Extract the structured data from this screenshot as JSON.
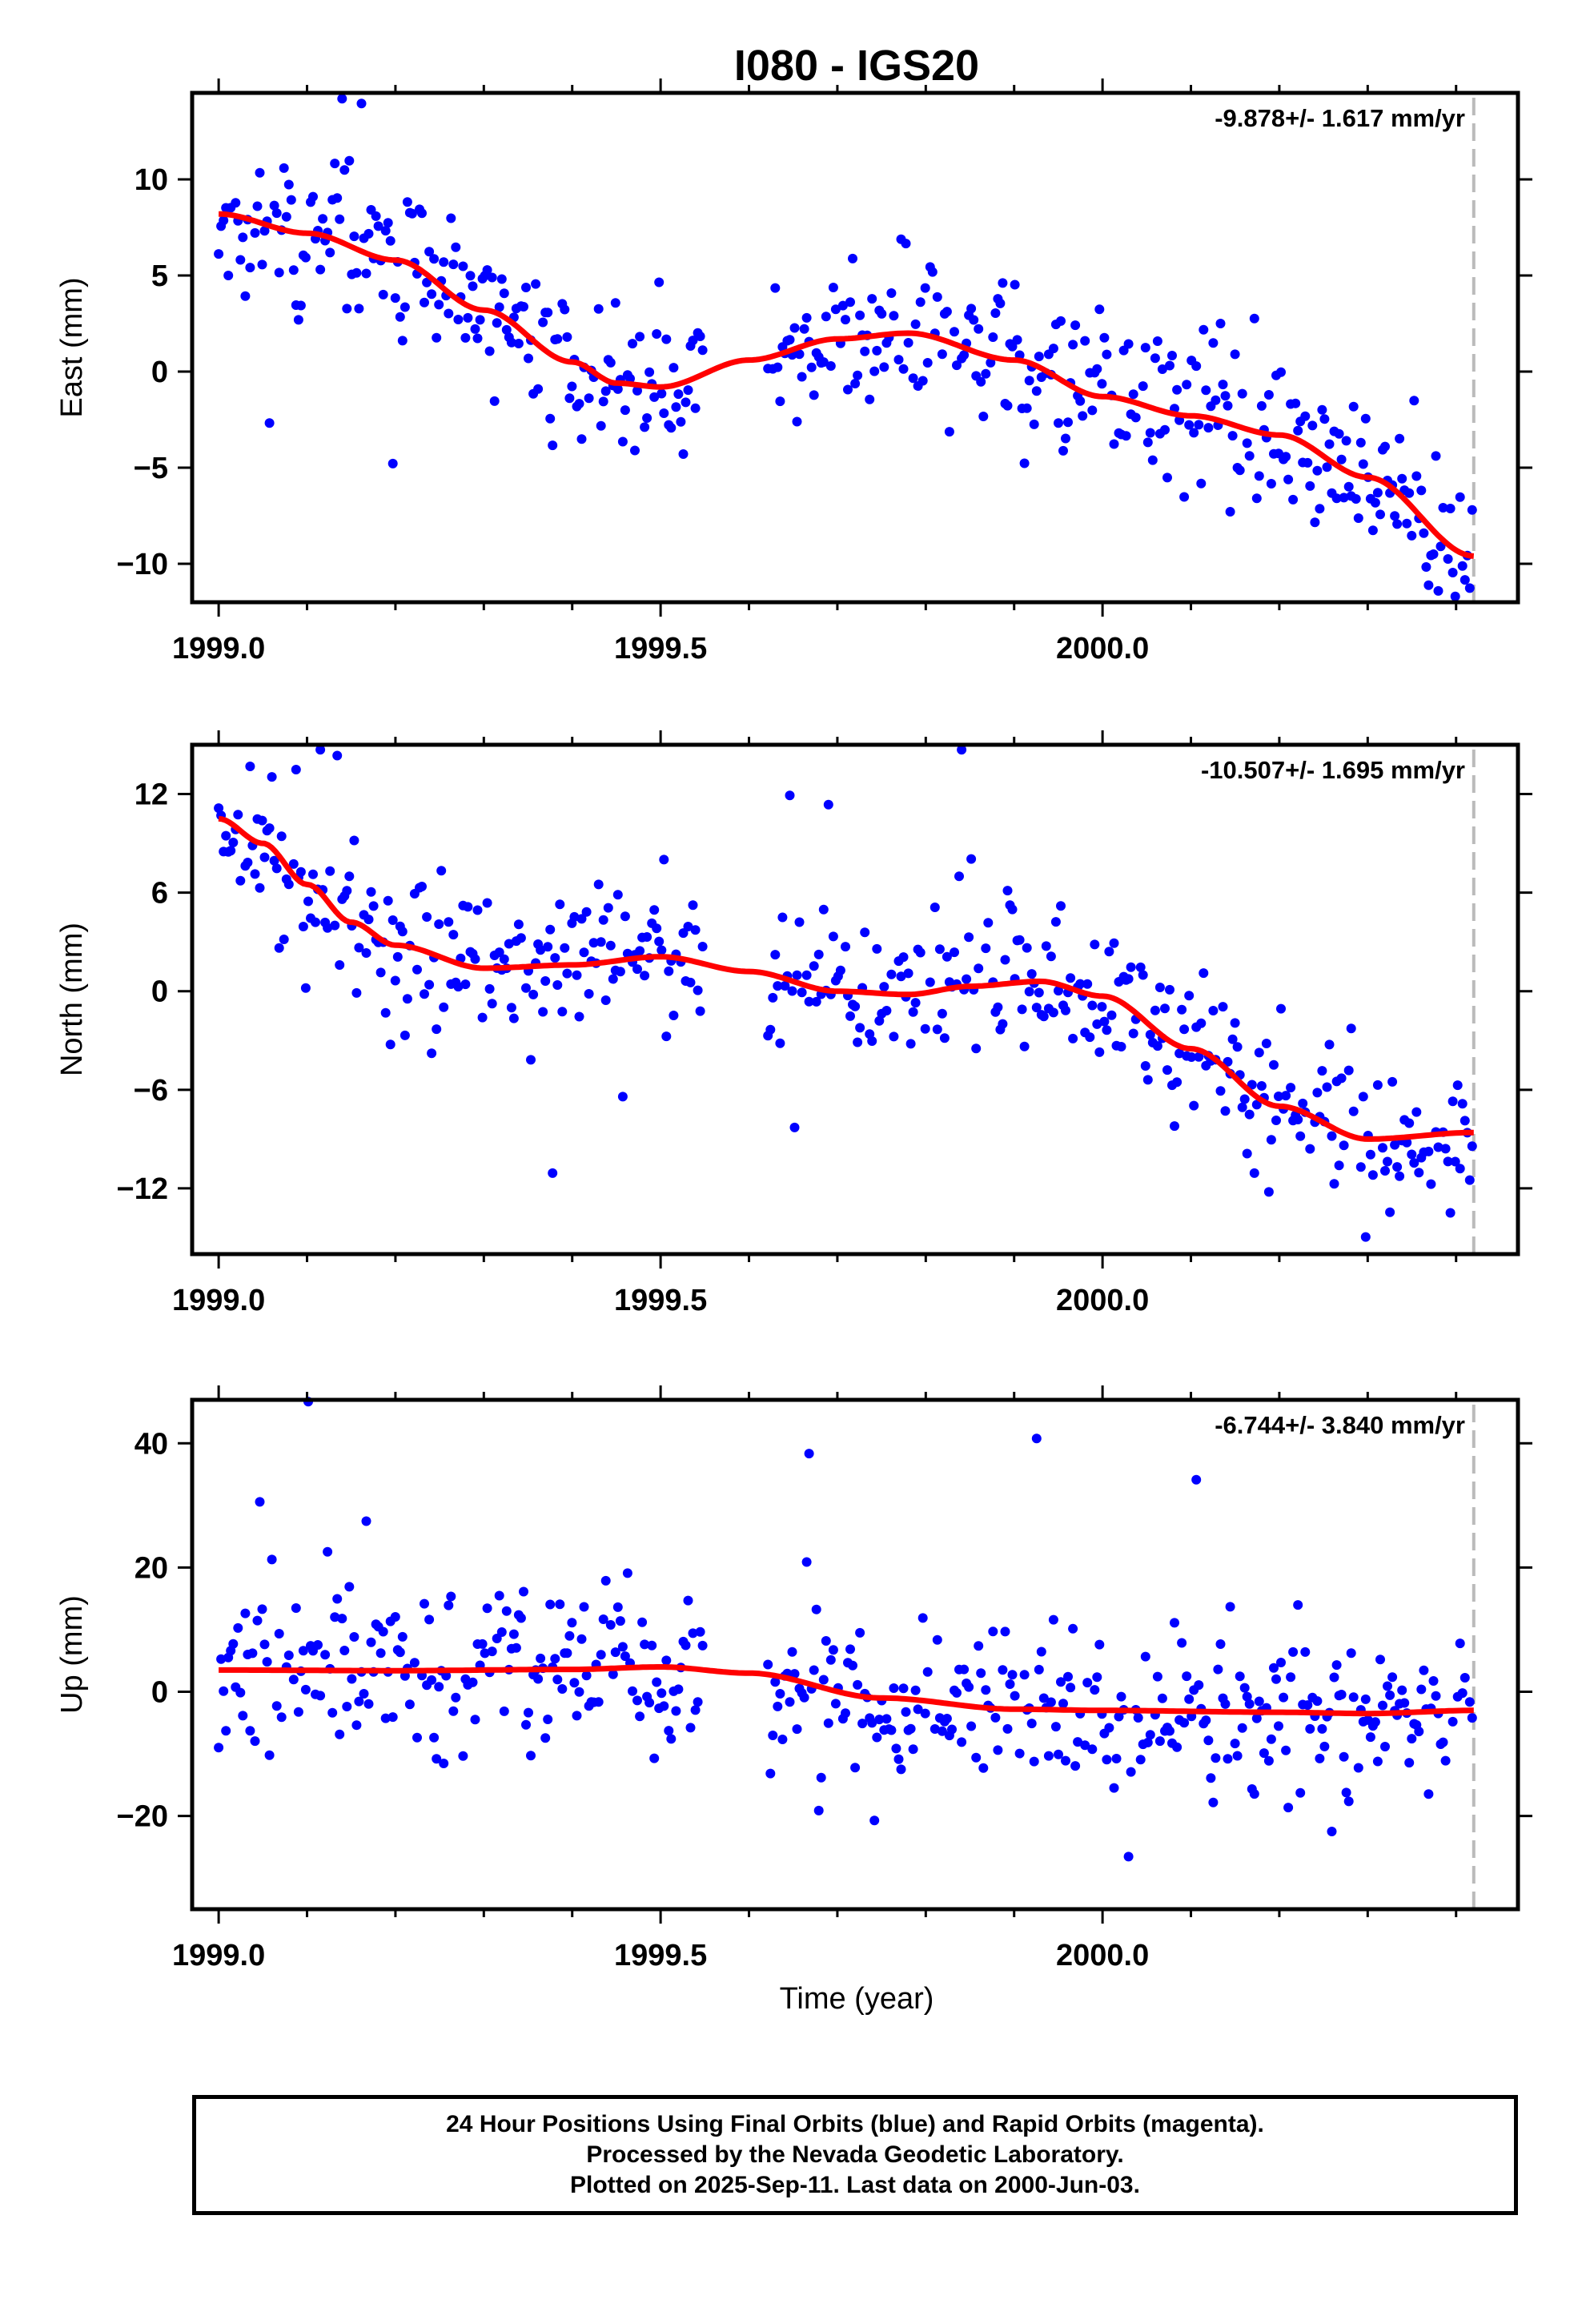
{
  "figure": {
    "title": "I080 - IGS20",
    "xlabel": "Time (year)",
    "x_ticks": [
      1999.0,
      1999.5,
      2000.0
    ],
    "x_tick_labels": [
      "1999.0",
      "1999.5",
      "2000.0"
    ],
    "x_range": [
      1998.97,
      2000.47
    ],
    "last_data_year": 2000.42,
    "footer": [
      "24 Hour Positions Using Final Orbits (blue) and Rapid Orbits (magenta).",
      "Processed by the Nevada Geodetic Laboratory.",
      "Plotted on 2025-Sep-11. Last data on 2000-Jun-03."
    ],
    "colors": {
      "final_orbits": "#0000ff",
      "fit": "#ff0000",
      "marker_line": "#bbbbbb",
      "axes": "#000000"
    }
  },
  "chart_data": [
    {
      "type": "scatter",
      "ylabel": "East (mm)",
      "rate_text": "-9.878+/- 1.617 mm/yr",
      "ylim": [
        -12,
        14.5
      ],
      "y_ticks": [
        -10,
        -5,
        0,
        5,
        10
      ],
      "y_tick_labels": [
        "−10",
        "−5",
        "0",
        "5",
        "10"
      ],
      "fit_knots": [
        [
          1999.0,
          8.2
        ],
        [
          1999.1,
          7.2
        ],
        [
          1999.2,
          5.8
        ],
        [
          1999.3,
          3.2
        ],
        [
          1999.4,
          0.5
        ],
        [
          1999.45,
          -0.6
        ],
        [
          1999.5,
          -0.8
        ],
        [
          1999.6,
          0.6
        ],
        [
          1999.7,
          1.7
        ],
        [
          1999.78,
          2.0
        ],
        [
          1999.9,
          0.6
        ],
        [
          2000.0,
          -1.3
        ],
        [
          2000.1,
          -2.3
        ],
        [
          2000.2,
          -3.3
        ],
        [
          2000.3,
          -5.5
        ],
        [
          2000.42,
          -9.6
        ]
      ],
      "fit_series": "Fit",
      "points_series": "Final Orbits",
      "noise": 2.1,
      "outlier_rate": 0.04,
      "outlier_scale": 3.0,
      "seed": 11
    },
    {
      "type": "scatter",
      "ylabel": "North (mm)",
      "rate_text": "-10.507+/- 1.695 mm/yr",
      "ylim": [
        -16,
        15
      ],
      "y_ticks": [
        -12,
        -6,
        0,
        6,
        12
      ],
      "y_tick_labels": [
        "−12",
        "−6",
        "0",
        "6",
        "12"
      ],
      "fit_knots": [
        [
          1999.0,
          10.5
        ],
        [
          1999.05,
          9.0
        ],
        [
          1999.1,
          6.5
        ],
        [
          1999.15,
          4.2
        ],
        [
          1999.2,
          2.8
        ],
        [
          1999.3,
          1.4
        ],
        [
          1999.4,
          1.6
        ],
        [
          1999.5,
          2.1
        ],
        [
          1999.6,
          1.2
        ],
        [
          1999.7,
          0.0
        ],
        [
          1999.78,
          -0.2
        ],
        [
          1999.85,
          0.3
        ],
        [
          1999.93,
          0.6
        ],
        [
          2000.0,
          -0.3
        ],
        [
          2000.1,
          -3.5
        ],
        [
          2000.2,
          -7.0
        ],
        [
          2000.3,
          -9.0
        ],
        [
          2000.42,
          -8.6
        ]
      ],
      "fit_series": "Fit",
      "points_series": "Final Orbits",
      "noise": 2.3,
      "outlier_rate": 0.04,
      "outlier_scale": 3.0,
      "seed": 23
    },
    {
      "type": "scatter",
      "ylabel": "Up (mm)",
      "rate_text": "-6.744+/- 3.840 mm/yr",
      "ylim": [
        -35,
        47
      ],
      "y_ticks": [
        -20,
        0,
        20,
        40
      ],
      "y_tick_labels": [
        "−20",
        "0",
        "20",
        "40"
      ],
      "fit_knots": [
        [
          1999.0,
          3.5
        ],
        [
          1999.2,
          3.4
        ],
        [
          1999.4,
          3.6
        ],
        [
          1999.5,
          4.0
        ],
        [
          1999.6,
          3.0
        ],
        [
          1999.75,
          -1.0
        ],
        [
          1999.9,
          -2.8
        ],
        [
          2000.0,
          -3.0
        ],
        [
          2000.2,
          -3.3
        ],
        [
          2000.3,
          -3.5
        ],
        [
          2000.42,
          -3.0
        ]
      ],
      "fit_series": "Fit",
      "points_series": "Final Orbits",
      "noise": 6.5,
      "outlier_rate": 0.05,
      "outlier_scale": 3.2,
      "seed": 37
    }
  ],
  "observation_gap": [
    1999.55,
    1999.62
  ]
}
